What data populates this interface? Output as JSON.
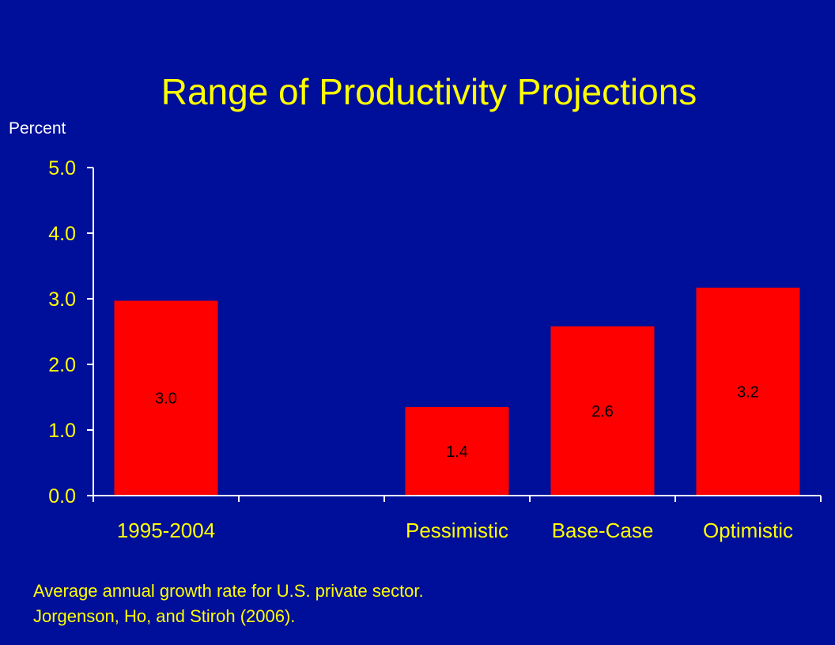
{
  "title": "Range of Productivity Projections",
  "ylabel": "Percent",
  "footnotes": [
    "Average annual growth rate for U.S. private sector.",
    "Jorgenson, Ho, and Stiroh (2006)."
  ],
  "colors": {
    "background": "#000f99",
    "bar": "#ff0000",
    "text_yellow": "#ffff00",
    "axis": "#ffffff",
    "data_label": "#000000"
  },
  "chart_data": {
    "type": "bar",
    "categories": [
      "1995-2004",
      "",
      "Pessimistic",
      "Base-Case",
      "Optimistic"
    ],
    "values": [
      2.97,
      null,
      1.35,
      2.58,
      3.17
    ],
    "data_labels": [
      "3.0",
      "",
      "1.4",
      "2.6",
      "3.2"
    ],
    "ylabel": "Percent",
    "ylim": [
      0,
      5
    ],
    "yticks": [
      "0.0",
      "1.0",
      "2.0",
      "3.0",
      "4.0",
      "5.0"
    ],
    "grid": false,
    "legend": "none"
  }
}
